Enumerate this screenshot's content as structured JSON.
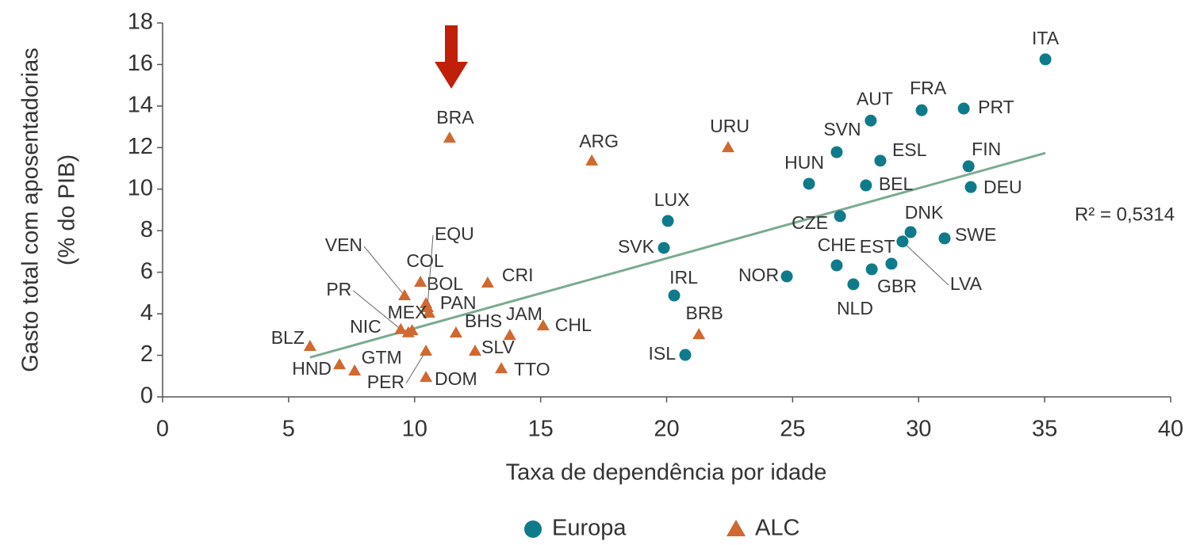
{
  "chart_data": {
    "type": "scatter",
    "xlabel": "Taxa de dependência por idade",
    "ylabel": [
      "Gasto total com aposentadorias",
      "(% do PIB)"
    ],
    "xlim": [
      0,
      40
    ],
    "xticks": [
      0,
      5,
      10,
      15,
      20,
      25,
      30,
      35,
      40
    ],
    "ylim": [
      0,
      18
    ],
    "yticks": [
      0,
      2,
      4,
      6,
      8,
      10,
      12,
      14,
      16,
      18
    ],
    "annotation": "R² = 0,5314",
    "trendline": {
      "x": [
        5.85,
        35.03
      ],
      "y": [
        1.9,
        11.74
      ],
      "color": "#7aab8f"
    },
    "series": [
      {
        "name": "Europa",
        "color": "#0f7b8a",
        "marker": "circle",
        "labels": [
          "ITA",
          "FRA",
          "PRT",
          "AUT",
          "SVN",
          "ESL",
          "FIN",
          "HUN",
          "BEL",
          "DEU",
          "LUX",
          "CZE",
          "DNK",
          "SWE",
          "LVA",
          "SVK",
          "CHE",
          "EST",
          "GBR",
          "NLD",
          "NOR",
          "IRL",
          "ISL"
        ],
        "x": [
          35.03,
          30.12,
          31.79,
          28.1,
          26.75,
          28.48,
          31.98,
          25.65,
          27.91,
          32.07,
          20.05,
          26.88,
          29.68,
          31.03,
          29.36,
          19.89,
          26.75,
          28.14,
          28.92,
          27.41,
          24.77,
          20.3,
          20.74
        ],
        "values": [
          16.25,
          13.8,
          13.88,
          13.3,
          11.78,
          11.37,
          11.1,
          10.26,
          10.18,
          10.1,
          8.47,
          8.7,
          7.93,
          7.63,
          7.48,
          7.17,
          6.33,
          6.14,
          6.41,
          5.42,
          5.8,
          4.88,
          2.02
        ]
      },
      {
        "name": "ALC",
        "color": "#d0682f",
        "marker": "triangle",
        "labels": [
          "BRA",
          "ARG",
          "URU",
          "CRI",
          "COL",
          "VEN",
          "BOL",
          "EQU",
          "PAN",
          "MEX",
          "PR",
          "NIC",
          "BHS",
          "JAM",
          "CHL",
          "BLZ",
          "SLV",
          "PER",
          "TTO",
          "HND",
          "GTM",
          "DOM",
          "BRB"
        ],
        "x": [
          11.39,
          17.03,
          22.44,
          12.9,
          10.23,
          9.6,
          10.45,
          10.51,
          10.57,
          9.9,
          9.45,
          9.75,
          11.64,
          13.78,
          15.1,
          5.85,
          12.4,
          10.45,
          13.44,
          7.02,
          7.62,
          10.45,
          21.28
        ],
        "values": [
          12.47,
          11.37,
          12.01,
          5.49,
          5.53,
          4.88,
          4.5,
          4.31,
          4.04,
          3.2,
          3.25,
          3.1,
          3.09,
          2.97,
          3.43,
          2.44,
          2.21,
          2.21,
          1.37,
          1.56,
          1.26,
          0.95,
          3.01
        ]
      }
    ]
  }
}
